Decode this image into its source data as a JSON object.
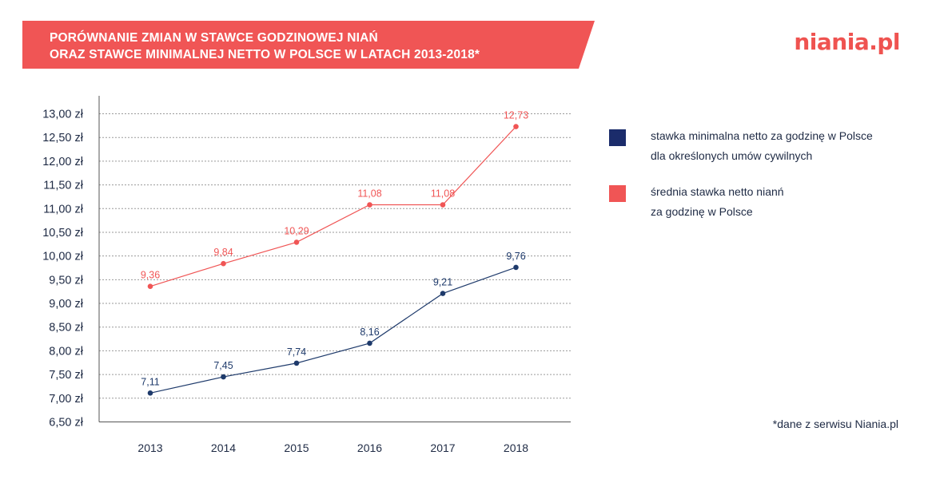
{
  "header": {
    "title_line1": "PORÓWNANIE ZMIAN W STAWCE GODZINOWEJ NIAŃ",
    "title_line2": "ORAZ STAWCE MINIMALNEJ NETTO W POLSCE W LATACH 2013-2018*",
    "banner_color": "#f05555",
    "logo_text": "niania.pl"
  },
  "legend": {
    "items": [
      {
        "line1": "stawka minimalna netto za godzinę w Polsce",
        "line2": "dla określonych umów cywilnych",
        "color": "#1b2c6b"
      },
      {
        "line1": "średnia stawka netto nianń",
        "line2": "za godzinę w Polsce",
        "color": "#f05555"
      }
    ]
  },
  "footnote": "*dane z serwisu Niania.pl",
  "chart_data": {
    "type": "line",
    "categories": [
      "2013",
      "2014",
      "2015",
      "2016",
      "2017",
      "2018"
    ],
    "series": [
      {
        "values": [
          7.11,
          7.45,
          7.74,
          8.16,
          9.21,
          9.76
        ],
        "labels": [
          "7,11",
          "7,45",
          "7,74",
          "8,16",
          "9,21",
          "9,76"
        ],
        "color": "#1e3a6b"
      },
      {
        "values": [
          9.36,
          9.84,
          10.29,
          11.08,
          11.08,
          12.73
        ],
        "labels": [
          "9,36",
          "9,84",
          "10,29",
          "11,08",
          "11,08",
          "12,73"
        ],
        "color": "#f05555"
      }
    ],
    "ylim": [
      6.5,
      13.0
    ],
    "yticks": [
      "6,50 zł",
      "7,00 zł",
      "7,50 zł",
      "8,00 zł",
      "8,50 zł",
      "9,00 zł",
      "9,50 zł",
      "10,00 zł",
      "10,50 zł",
      "11,00 zł",
      "11,50 zł",
      "12,00 zł",
      "12,50 zł",
      "13,00 zł"
    ],
    "grid": true,
    "xlabel": "",
    "ylabel": ""
  }
}
